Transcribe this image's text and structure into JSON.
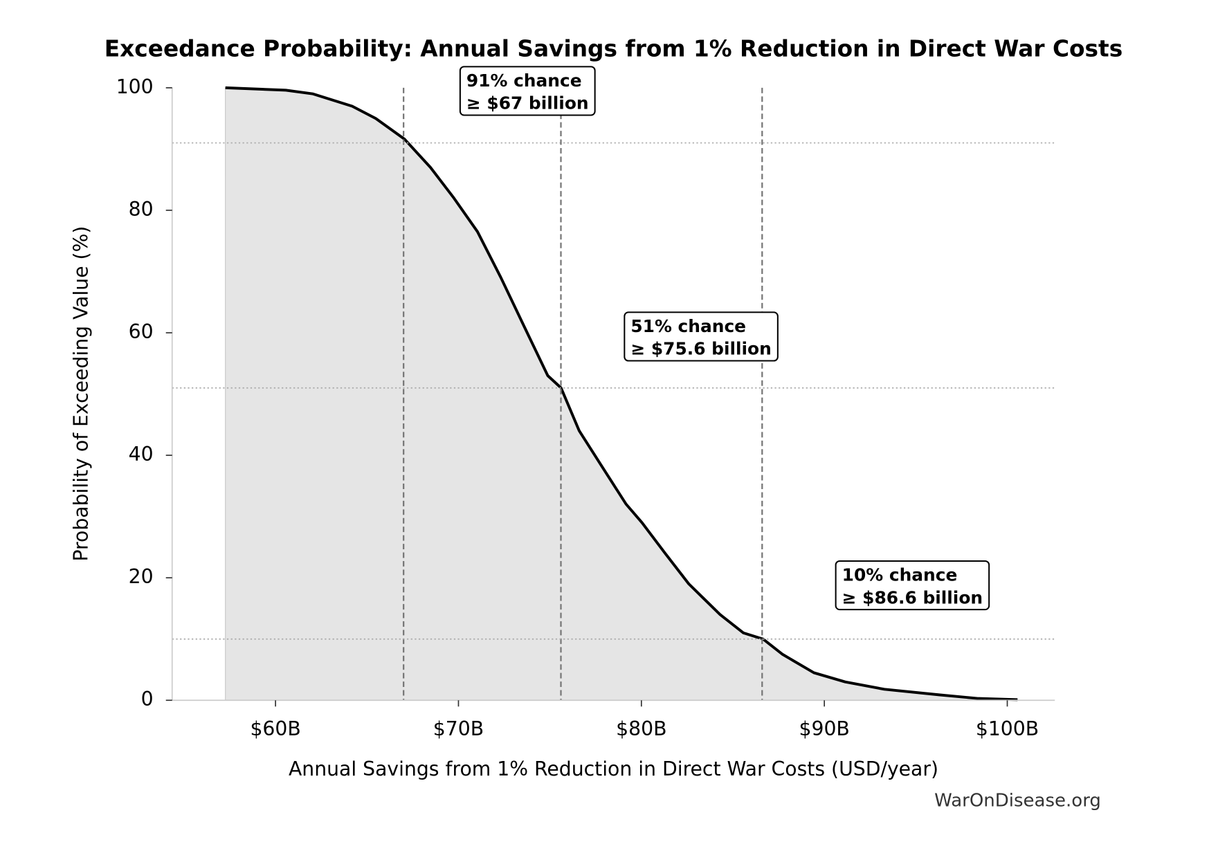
{
  "chart_data": {
    "type": "line",
    "title": "Exceedance Probability: Annual Savings from 1% Reduction in Direct War Costs",
    "x_label": "Annual Savings from 1% Reduction in Direct War Costs (USD/year)",
    "y_label": "Probability of Exceeding Value (%)",
    "watermark": "WarOnDisease.org",
    "x": [
      57.26,
      60.56,
      62.05,
      64.19,
      65.48,
      67.06,
      68.47,
      69.75,
      71.04,
      72.32,
      73.6,
      74.88,
      75.61,
      76.6,
      77.88,
      79.17,
      80.03,
      81.3,
      82.59,
      84.3,
      85.58,
      86.65,
      87.72,
      89.43,
      91.14,
      93.28,
      96.28,
      98.42,
      100.56
    ],
    "series": [
      {
        "color": "#000000",
        "fill": "#e5e5e5",
        "values": [
          100,
          99.6,
          99,
          97,
          95,
          91.6,
          87,
          82,
          76.5,
          69,
          61,
          53,
          51,
          44,
          38,
          32,
          29,
          24,
          19,
          14,
          11,
          10,
          7.5,
          4.5,
          3,
          1.8,
          0.9,
          0.3,
          0.1
        ]
      }
    ],
    "markers": [
      {
        "x": 67,
        "y": 91,
        "label": [
          "91% chance",
          "≥ $67 billion"
        ]
      },
      {
        "x": 75.6,
        "y": 51,
        "label": [
          "51% chance",
          "≥ $75.6 billion"
        ]
      },
      {
        "x": 86.6,
        "y": 10,
        "label": [
          "10% chance",
          "≥ $86.6 billion"
        ]
      }
    ],
    "xlim": [
      54.35,
      102.6
    ],
    "ylim": [
      0,
      100
    ],
    "xticks": [
      {
        "value": 60,
        "label": "$60B"
      },
      {
        "value": 70,
        "label": "$70B"
      },
      {
        "value": 80,
        "label": "$80B"
      },
      {
        "value": 90,
        "label": "$90B"
      },
      {
        "value": 100,
        "label": "$100B"
      }
    ],
    "yticks": [
      0,
      20,
      40,
      60,
      80,
      100
    ]
  }
}
